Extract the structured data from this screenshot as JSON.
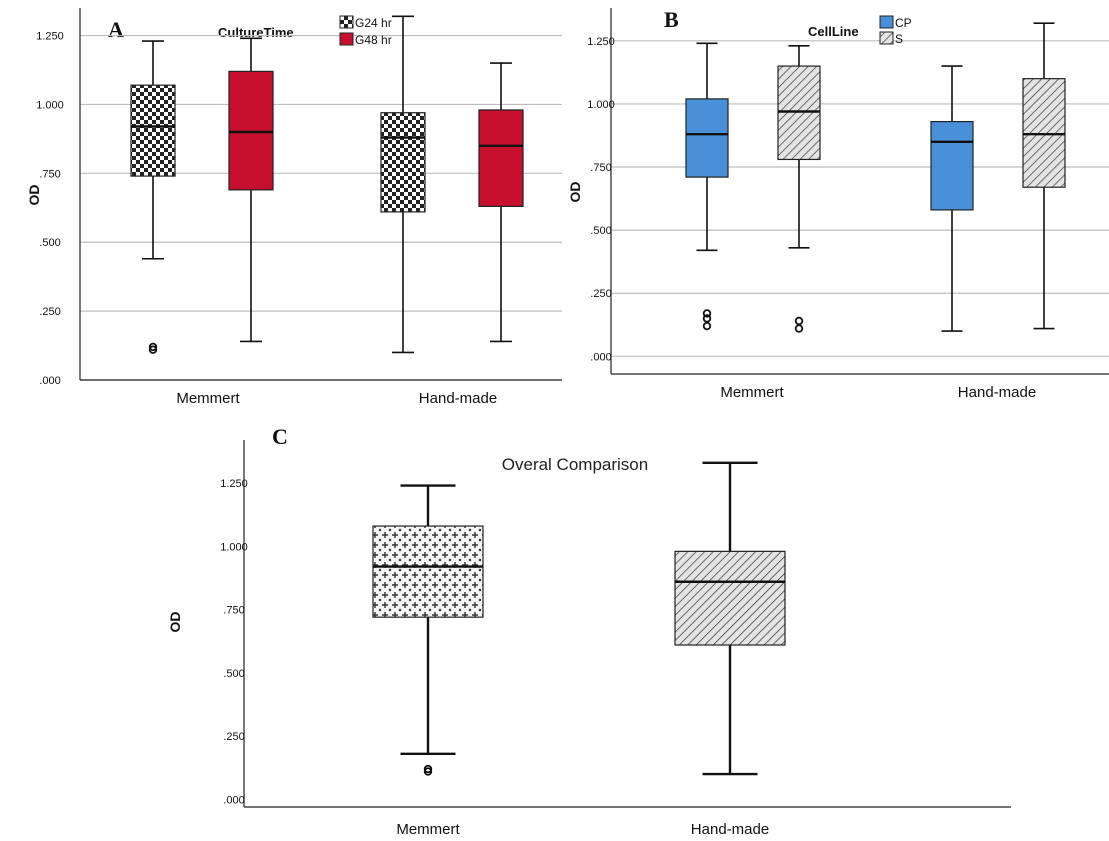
{
  "chart_data": [
    {
      "panel": "A",
      "type": "box",
      "ylabel": "OD",
      "ylim": [
        0,
        1.35
      ],
      "yticks": [
        ".000",
        ".250",
        ".500",
        ".750",
        "1.000",
        "1.250"
      ],
      "categories": [
        "Memmert",
        "Hand-made"
      ],
      "legend": {
        "title": "CultureTime",
        "position": "top-center"
      },
      "grid": true,
      "series": [
        {
          "name": "G24 hr",
          "color": "#ffffff",
          "pattern": "checker",
          "boxes": [
            {
              "min": 0.44,
              "q1": 0.74,
              "median": 0.92,
              "q3": 1.07,
              "max": 1.23,
              "outliers": [
                0.11,
                0.12
              ]
            },
            {
              "min": 0.1,
              "q1": 0.61,
              "median": 0.88,
              "q3": 0.97,
              "max": 1.32,
              "outliers": []
            }
          ]
        },
        {
          "name": "G48 hr",
          "color": "#c8102e",
          "pattern": "solid",
          "boxes": [
            {
              "min": 0.14,
              "q1": 0.69,
              "median": 0.9,
              "q3": 1.12,
              "max": 1.24,
              "outliers": []
            },
            {
              "min": 0.14,
              "q1": 0.63,
              "median": 0.85,
              "q3": 0.98,
              "max": 1.15,
              "outliers": []
            }
          ]
        }
      ]
    },
    {
      "panel": "B",
      "type": "box",
      "ylabel": "OD",
      "ylim": [
        -0.07,
        1.38
      ],
      "yticks": [
        ".000",
        ".250",
        ".500",
        ".750",
        "1.000",
        "1.250"
      ],
      "categories": [
        "Memmert",
        "Hand-made"
      ],
      "legend": {
        "title": "CellLine",
        "position": "top-center"
      },
      "grid": true,
      "series": [
        {
          "name": "CP",
          "color": "#4a90d9",
          "pattern": "solid",
          "boxes": [
            {
              "min": 0.42,
              "q1": 0.71,
              "median": 0.88,
              "q3": 1.02,
              "max": 1.24,
              "outliers": [
                0.12,
                0.15,
                0.17
              ]
            },
            {
              "min": 0.1,
              "q1": 0.58,
              "median": 0.85,
              "q3": 0.93,
              "max": 1.15,
              "outliers": []
            }
          ]
        },
        {
          "name": "S",
          "color": "#d9d9d9",
          "pattern": "hatch",
          "boxes": [
            {
              "min": 0.43,
              "q1": 0.78,
              "median": 0.97,
              "q3": 1.15,
              "max": 1.23,
              "outliers": [
                0.11,
                0.14
              ]
            },
            {
              "min": 0.11,
              "q1": 0.67,
              "median": 0.88,
              "q3": 1.1,
              "max": 1.32,
              "outliers": []
            }
          ]
        }
      ]
    },
    {
      "panel": "C",
      "type": "box",
      "title": "Overal Comparison",
      "ylabel": "OD",
      "ylim": [
        -0.03,
        1.42
      ],
      "yticks": [
        ".000",
        ".250",
        ".500",
        ".750",
        "1.000",
        "1.250"
      ],
      "categories": [
        "Memmert",
        "Hand-made"
      ],
      "grid": false,
      "boxes": [
        {
          "pattern": "crosses",
          "min": 0.18,
          "q1": 0.72,
          "median": 0.92,
          "q3": 1.08,
          "max": 1.24,
          "outliers": [
            0.11,
            0.12
          ]
        },
        {
          "pattern": "hatch",
          "min": 0.1,
          "q1": 0.61,
          "median": 0.86,
          "q3": 0.98,
          "max": 1.33,
          "outliers": []
        }
      ]
    }
  ]
}
